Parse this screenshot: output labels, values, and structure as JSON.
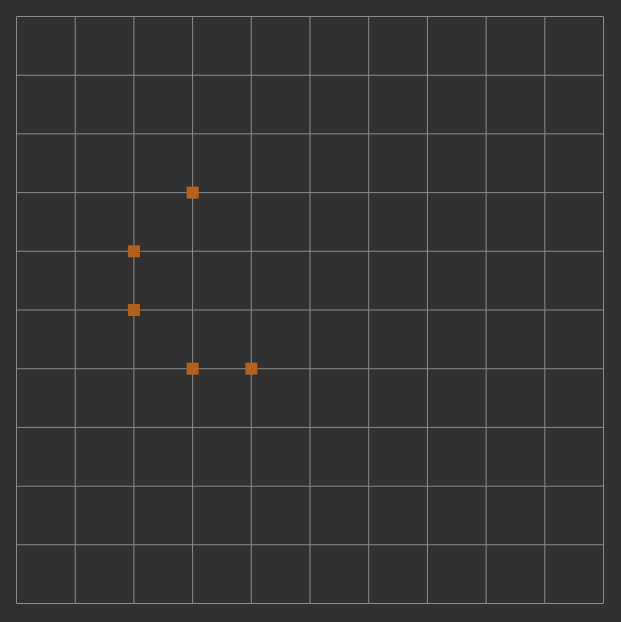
{
  "board": {
    "rows": 10,
    "cols": 10,
    "background_color": "#313131",
    "grid_line_color": "#8a8a8a",
    "marker_color": "#b5611d",
    "markers": [
      {
        "row": 3,
        "col": 3
      },
      {
        "row": 4,
        "col": 2
      },
      {
        "row": 5,
        "col": 2
      },
      {
        "row": 6,
        "col": 3
      },
      {
        "row": 6,
        "col": 4
      }
    ]
  }
}
